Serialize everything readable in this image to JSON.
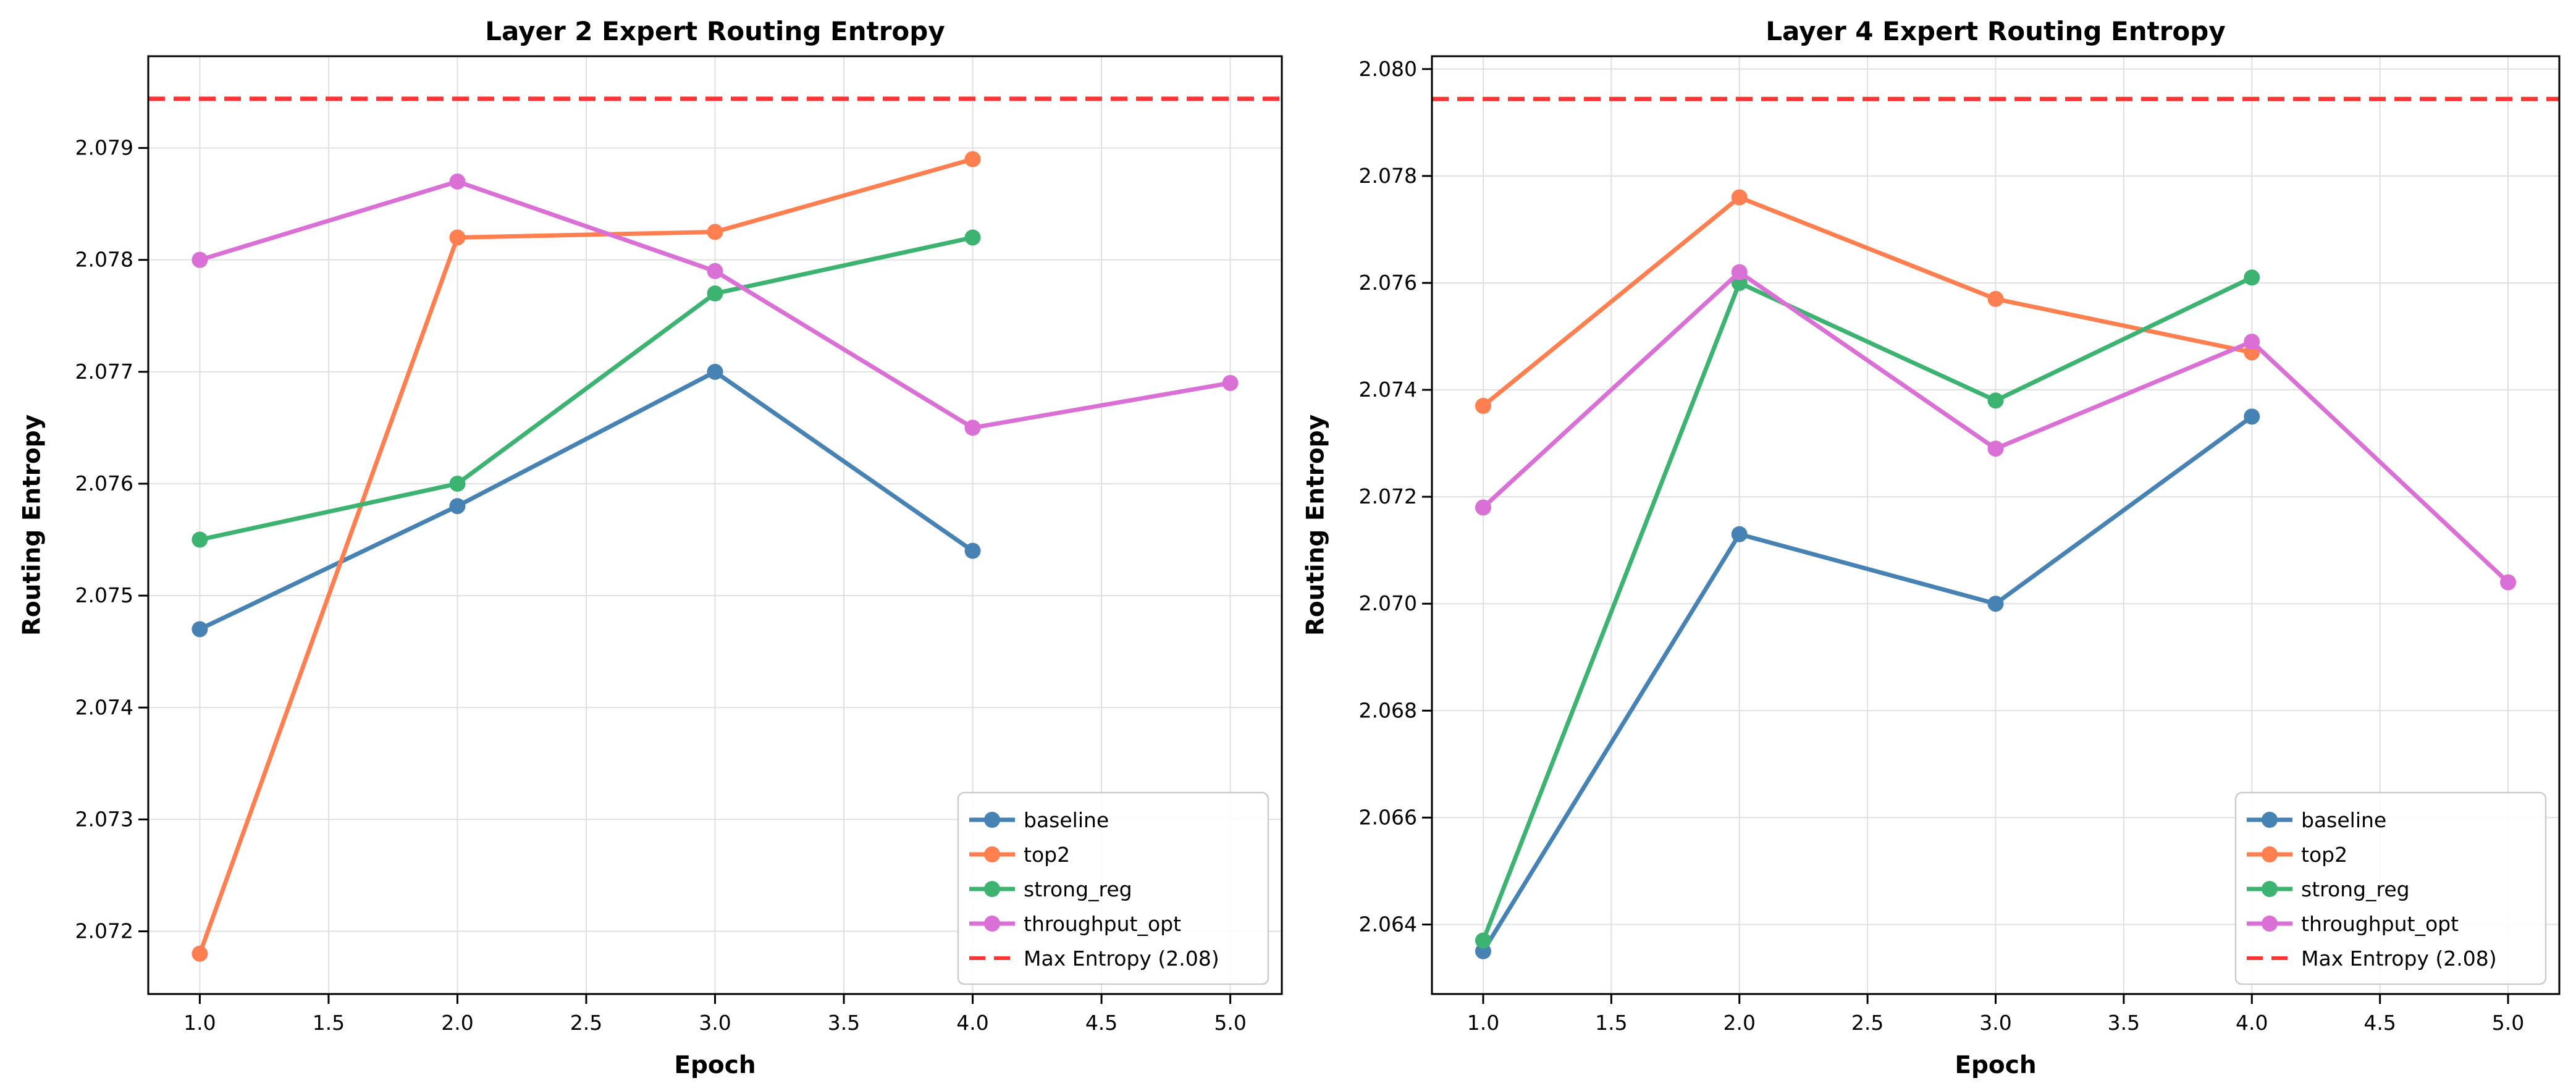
{
  "style": {
    "background": "#ffffff",
    "grid_color": "#e0e0e0",
    "spine_color": "#000000",
    "tick_color": "#000000",
    "text_color": "#000000",
    "legend_border_color": "#cccccc",
    "legend_fill_color": "#ffffff"
  },
  "chart_data": [
    {
      "type": "line",
      "title": "Layer 2 Expert Routing Entropy",
      "xlabel": "Epoch",
      "ylabel": "Routing Entropy",
      "xlim": [
        0.8,
        5.2
      ],
      "ylim": [
        2.07144,
        2.07982
      ],
      "xticks": [
        1.0,
        1.5,
        2.0,
        2.5,
        3.0,
        3.5,
        4.0,
        4.5,
        5.0
      ],
      "yticks": [
        2.072,
        2.073,
        2.074,
        2.075,
        2.076,
        2.077,
        2.078,
        2.079
      ],
      "xtick_decimals": 1,
      "ytick_decimals": 3,
      "grid": true,
      "legend_position": "lower right",
      "series": [
        {
          "name": "baseline",
          "color": "#4682B4",
          "x": [
            1,
            2,
            3,
            4
          ],
          "values": [
            2.0747,
            2.0758,
            2.077,
            2.0754
          ]
        },
        {
          "name": "top2",
          "color": "#FF7F50",
          "x": [
            1,
            2,
            3,
            4
          ],
          "values": [
            2.0718,
            2.0782,
            2.07825,
            2.0789
          ]
        },
        {
          "name": "strong_reg",
          "color": "#3CB371",
          "x": [
            1,
            2,
            3,
            4
          ],
          "values": [
            2.0755,
            2.076,
            2.0777,
            2.0782
          ]
        },
        {
          "name": "throughput_opt",
          "color": "#DA70D6",
          "x": [
            1,
            2,
            3,
            4,
            5
          ],
          "values": [
            2.078,
            2.0787,
            2.0779,
            2.0765,
            2.0769
          ]
        }
      ],
      "reference_line": {
        "label": "Max Entropy (2.08)",
        "value": 2.07944,
        "color": "#FF3333",
        "style": "dashed"
      }
    },
    {
      "type": "line",
      "title": "Layer 4 Expert Routing Entropy",
      "xlabel": "Epoch",
      "ylabel": "Routing Entropy",
      "xlim": [
        0.8,
        5.2
      ],
      "ylim": [
        2.0627,
        2.08024
      ],
      "xticks": [
        1.0,
        1.5,
        2.0,
        2.5,
        3.0,
        3.5,
        4.0,
        4.5,
        5.0
      ],
      "yticks": [
        2.064,
        2.066,
        2.068,
        2.07,
        2.072,
        2.074,
        2.076,
        2.078,
        2.08
      ],
      "xtick_decimals": 1,
      "ytick_decimals": 3,
      "grid": true,
      "legend_position": "lower right",
      "series": [
        {
          "name": "baseline",
          "color": "#4682B4",
          "x": [
            1,
            2,
            3,
            4
          ],
          "values": [
            2.0635,
            2.0713,
            2.07,
            2.0735
          ]
        },
        {
          "name": "top2",
          "color": "#FF7F50",
          "x": [
            1,
            2,
            3,
            4
          ],
          "values": [
            2.0737,
            2.0776,
            2.0757,
            2.0747
          ]
        },
        {
          "name": "strong_reg",
          "color": "#3CB371",
          "x": [
            1,
            2,
            3,
            4
          ],
          "values": [
            2.0637,
            2.076,
            2.0738,
            2.0761
          ]
        },
        {
          "name": "throughput_opt",
          "color": "#DA70D6",
          "x": [
            1,
            2,
            3,
            4,
            5
          ],
          "values": [
            2.0718,
            2.0762,
            2.0729,
            2.0749,
            2.0704
          ]
        }
      ],
      "reference_line": {
        "label": "Max Entropy (2.08)",
        "value": 2.07944,
        "color": "#FF3333",
        "style": "dashed"
      }
    }
  ]
}
